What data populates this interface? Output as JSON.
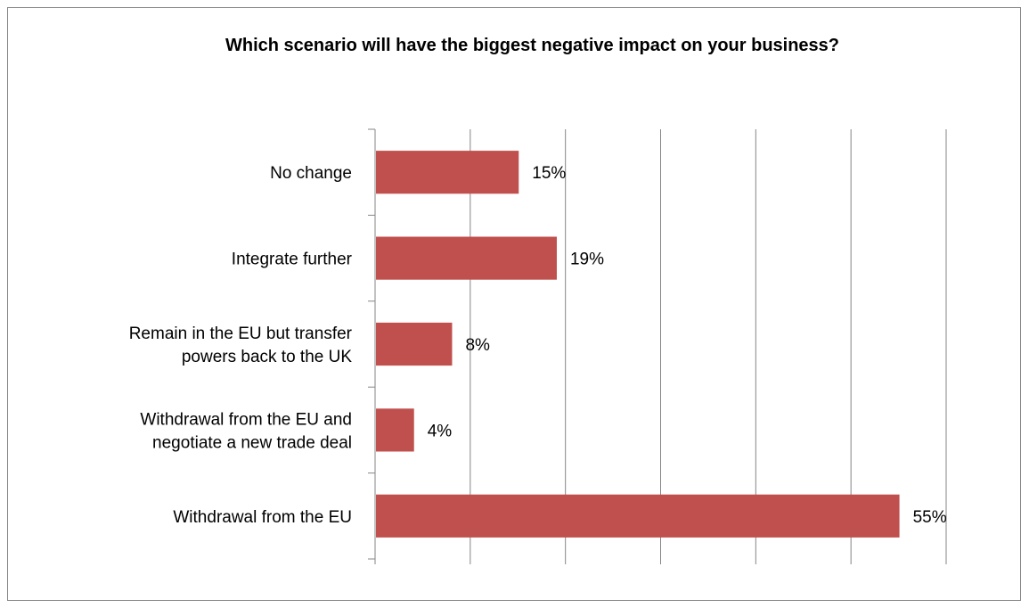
{
  "chart_data": {
    "type": "bar",
    "orientation": "horizontal",
    "title": "Which scenario will have the biggest negative impact on your business?",
    "categories": [
      "No change",
      "Integrate further",
      "Remain in the EU but transfer powers back to the UK",
      "Withdrawal from the EU and negotiate a new trade deal",
      "Withdrawal from the EU"
    ],
    "category_lines": [
      [
        "No change"
      ],
      [
        "Integrate further"
      ],
      [
        "Remain in the EU but transfer",
        "powers back to the UK"
      ],
      [
        "Withdrawal from the EU and",
        "negotiate a new trade deal"
      ],
      [
        "Withdrawal from the EU"
      ]
    ],
    "values": [
      15,
      19,
      8,
      4,
      55
    ],
    "value_labels": [
      "15%",
      "19%",
      "8%",
      "4%",
      "55%"
    ],
    "xlim": [
      0,
      60
    ],
    "x_tick_step": 10,
    "grid": true,
    "bar_color": "#c0504d",
    "grid_color": "#868686",
    "legend": "none"
  }
}
